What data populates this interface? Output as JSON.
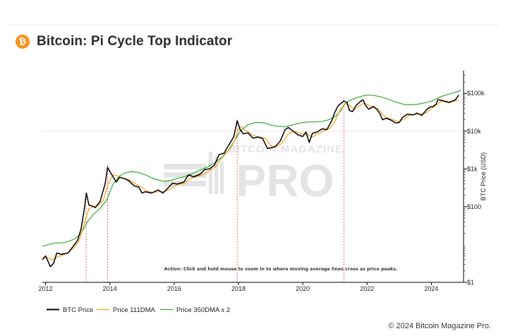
{
  "header": {
    "logo_glyph": "₿",
    "title": "Bitcoin: Pi Cycle Top Indicator"
  },
  "footer": {
    "copyright": "© 2024 Bitcoin Magazine Pro."
  },
  "watermark": {
    "brand": "BITCOIN MAGAZINE",
    "product": "PRO"
  },
  "colors": {
    "btc_price": "#000000",
    "dma111": "#f5a020",
    "dma350x2": "#3aa832",
    "signal_line": "#e05a5a",
    "grid": "#bdbdbd"
  },
  "chart_data": {
    "type": "line",
    "title": "Bitcoin: Pi Cycle Top Indicator",
    "xlabel": "",
    "ylabel": "BTC Price (USD)",
    "yscale": "log",
    "ylim": [
      1,
      400000
    ],
    "xlim": [
      2011.9,
      2025.0
    ],
    "x_ticks": [
      2012,
      2014,
      2016,
      2018,
      2020,
      2022,
      2024
    ],
    "y_ticks": [
      {
        "value": 1,
        "label": "$1"
      },
      {
        "value": 100,
        "label": "$100"
      },
      {
        "value": 1000,
        "label": "$1k"
      },
      {
        "value": 10000,
        "label": "$10k"
      },
      {
        "value": 100000,
        "label": "$100k"
      }
    ],
    "annotation": "Action: Click and hold mouse to zoom in to where moving average lines cross as price peaks.",
    "pi_cycle_signals": [
      2013.26,
      2013.93,
      2017.96,
      2021.28
    ],
    "series": [
      {
        "name": "BTC Price",
        "points": [
          [
            2011.9,
            4
          ],
          [
            2012.0,
            5
          ],
          [
            2012.15,
            2.6
          ],
          [
            2012.25,
            3.2
          ],
          [
            2012.35,
            6
          ],
          [
            2012.5,
            5.5
          ],
          [
            2012.7,
            6
          ],
          [
            2012.9,
            10
          ],
          [
            2013.0,
            13
          ],
          [
            2013.1,
            25
          ],
          [
            2013.2,
            80
          ],
          [
            2013.27,
            230
          ],
          [
            2013.35,
            110
          ],
          [
            2013.45,
            105
          ],
          [
            2013.55,
            95
          ],
          [
            2013.7,
            140
          ],
          [
            2013.85,
            400
          ],
          [
            2013.93,
            1100
          ],
          [
            2014.0,
            850
          ],
          [
            2014.1,
            620
          ],
          [
            2014.2,
            450
          ],
          [
            2014.3,
            600
          ],
          [
            2014.45,
            560
          ],
          [
            2014.6,
            480
          ],
          [
            2014.75,
            360
          ],
          [
            2014.9,
            330
          ],
          [
            2015.0,
            230
          ],
          [
            2015.1,
            250
          ],
          [
            2015.3,
            230
          ],
          [
            2015.5,
            280
          ],
          [
            2015.65,
            230
          ],
          [
            2015.8,
            310
          ],
          [
            2015.95,
            420
          ],
          [
            2016.1,
            400
          ],
          [
            2016.3,
            450
          ],
          [
            2016.45,
            700
          ],
          [
            2016.6,
            620
          ],
          [
            2016.8,
            720
          ],
          [
            2016.95,
            960
          ],
          [
            2017.1,
            1000
          ],
          [
            2017.25,
            1250
          ],
          [
            2017.4,
            2400
          ],
          [
            2017.55,
            2600
          ],
          [
            2017.7,
            4300
          ],
          [
            2017.85,
            7000
          ],
          [
            2017.96,
            19000
          ],
          [
            2018.05,
            11000
          ],
          [
            2018.15,
            8500
          ],
          [
            2018.3,
            9000
          ],
          [
            2018.45,
            6500
          ],
          [
            2018.6,
            7000
          ],
          [
            2018.75,
            6400
          ],
          [
            2018.9,
            3500
          ],
          [
            2019.0,
            3600
          ],
          [
            2019.15,
            3900
          ],
          [
            2019.3,
            5500
          ],
          [
            2019.45,
            11000
          ],
          [
            2019.55,
            12500
          ],
          [
            2019.7,
            10000
          ],
          [
            2019.85,
            8000
          ],
          [
            2020.0,
            7200
          ],
          [
            2020.1,
            9500
          ],
          [
            2020.2,
            5000
          ],
          [
            2020.3,
            8800
          ],
          [
            2020.45,
            9500
          ],
          [
            2020.6,
            11500
          ],
          [
            2020.75,
            11000
          ],
          [
            2020.9,
            19000
          ],
          [
            2021.0,
            32000
          ],
          [
            2021.1,
            47000
          ],
          [
            2021.28,
            63000
          ],
          [
            2021.38,
            57000
          ],
          [
            2021.45,
            35000
          ],
          [
            2021.55,
            33000
          ],
          [
            2021.65,
            47000
          ],
          [
            2021.8,
            62000
          ],
          [
            2021.88,
            67000
          ],
          [
            2021.95,
            48000
          ],
          [
            2022.05,
            38000
          ],
          [
            2022.2,
            45000
          ],
          [
            2022.3,
            38000
          ],
          [
            2022.4,
            29000
          ],
          [
            2022.48,
            20000
          ],
          [
            2022.6,
            22000
          ],
          [
            2022.75,
            19500
          ],
          [
            2022.88,
            16500
          ],
          [
            2023.0,
            17000
          ],
          [
            2023.1,
            23000
          ],
          [
            2023.25,
            28000
          ],
          [
            2023.45,
            27000
          ],
          [
            2023.55,
            30000
          ],
          [
            2023.7,
            26000
          ],
          [
            2023.85,
            37000
          ],
          [
            2023.95,
            43000
          ],
          [
            2024.05,
            45000
          ],
          [
            2024.15,
            52000
          ],
          [
            2024.2,
            68000
          ],
          [
            2024.3,
            66000
          ],
          [
            2024.45,
            60000
          ],
          [
            2024.55,
            57000
          ],
          [
            2024.65,
            62000
          ],
          [
            2024.75,
            68000
          ],
          [
            2024.85,
            90000
          ]
        ]
      },
      {
        "name": "Price 111DMA",
        "points": [
          [
            2011.9,
            4.5
          ],
          [
            2012.05,
            4.5
          ],
          [
            2012.2,
            4
          ],
          [
            2012.35,
            4.6
          ],
          [
            2012.5,
            5.2
          ],
          [
            2012.7,
            6
          ],
          [
            2012.9,
            8.5
          ],
          [
            2013.05,
            13
          ],
          [
            2013.2,
            35
          ],
          [
            2013.35,
            90
          ],
          [
            2013.5,
            100
          ],
          [
            2013.65,
            110
          ],
          [
            2013.8,
            150
          ],
          [
            2013.95,
            420
          ],
          [
            2014.1,
            700
          ],
          [
            2014.25,
            650
          ],
          [
            2014.4,
            560
          ],
          [
            2014.55,
            540
          ],
          [
            2014.7,
            460
          ],
          [
            2014.85,
            380
          ],
          [
            2015.0,
            320
          ],
          [
            2015.15,
            260
          ],
          [
            2015.3,
            240
          ],
          [
            2015.5,
            250
          ],
          [
            2015.7,
            250
          ],
          [
            2015.9,
            300
          ],
          [
            2016.1,
            390
          ],
          [
            2016.3,
            410
          ],
          [
            2016.5,
            550
          ],
          [
            2016.7,
            630
          ],
          [
            2016.9,
            700
          ],
          [
            2017.1,
            900
          ],
          [
            2017.3,
            1150
          ],
          [
            2017.45,
            1800
          ],
          [
            2017.6,
            2500
          ],
          [
            2017.75,
            3500
          ],
          [
            2017.9,
            6000
          ],
          [
            2017.98,
            11000
          ],
          [
            2018.1,
            13000
          ],
          [
            2018.25,
            10000
          ],
          [
            2018.45,
            7800
          ],
          [
            2018.65,
            7000
          ],
          [
            2018.85,
            6300
          ],
          [
            2019.0,
            4200
          ],
          [
            2019.15,
            3800
          ],
          [
            2019.35,
            4700
          ],
          [
            2019.55,
            8500
          ],
          [
            2019.75,
            10000
          ],
          [
            2019.95,
            8500
          ],
          [
            2020.15,
            8000
          ],
          [
            2020.3,
            7000
          ],
          [
            2020.5,
            8800
          ],
          [
            2020.7,
            10500
          ],
          [
            2020.85,
            12000
          ],
          [
            2021.0,
            18000
          ],
          [
            2021.15,
            35000
          ],
          [
            2021.3,
            53000
          ],
          [
            2021.45,
            48000
          ],
          [
            2021.6,
            38000
          ],
          [
            2021.75,
            46000
          ],
          [
            2021.9,
            55000
          ],
          [
            2022.05,
            48000
          ],
          [
            2022.2,
            42000
          ],
          [
            2022.35,
            38000
          ],
          [
            2022.5,
            27000
          ],
          [
            2022.65,
            22000
          ],
          [
            2022.85,
            19500
          ],
          [
            2023.0,
            18000
          ],
          [
            2023.15,
            21000
          ],
          [
            2023.3,
            26000
          ],
          [
            2023.5,
            28000
          ],
          [
            2023.7,
            28000
          ],
          [
            2023.85,
            31000
          ],
          [
            2024.0,
            40000
          ],
          [
            2024.15,
            48000
          ],
          [
            2024.3,
            62000
          ],
          [
            2024.5,
            63000
          ],
          [
            2024.7,
            61000
          ],
          [
            2024.85,
            68000
          ]
        ]
      },
      {
        "name": "Price 350DMA x 2",
        "points": [
          [
            2011.9,
            9
          ],
          [
            2012.1,
            10
          ],
          [
            2012.3,
            11
          ],
          [
            2012.5,
            11
          ],
          [
            2012.7,
            12
          ],
          [
            2012.9,
            14
          ],
          [
            2013.1,
            19
          ],
          [
            2013.3,
            40
          ],
          [
            2013.5,
            65
          ],
          [
            2013.7,
            90
          ],
          [
            2013.9,
            150
          ],
          [
            2014.1,
            400
          ],
          [
            2014.3,
            650
          ],
          [
            2014.5,
            800
          ],
          [
            2014.7,
            850
          ],
          [
            2014.9,
            800
          ],
          [
            2015.1,
            700
          ],
          [
            2015.3,
            580
          ],
          [
            2015.5,
            510
          ],
          [
            2015.7,
            470
          ],
          [
            2015.9,
            500
          ],
          [
            2016.1,
            560
          ],
          [
            2016.3,
            620
          ],
          [
            2016.5,
            720
          ],
          [
            2016.7,
            860
          ],
          [
            2016.9,
            1000
          ],
          [
            2017.1,
            1200
          ],
          [
            2017.3,
            1500
          ],
          [
            2017.5,
            2100
          ],
          [
            2017.7,
            3200
          ],
          [
            2017.9,
            6000
          ],
          [
            2018.05,
            10000
          ],
          [
            2018.3,
            15000
          ],
          [
            2018.55,
            17000
          ],
          [
            2018.8,
            16500
          ],
          [
            2019.0,
            14500
          ],
          [
            2019.2,
            13500
          ],
          [
            2019.4,
            13000
          ],
          [
            2019.6,
            14000
          ],
          [
            2019.8,
            15500
          ],
          [
            2020.0,
            17000
          ],
          [
            2020.2,
            17500
          ],
          [
            2020.4,
            17500
          ],
          [
            2020.6,
            18000
          ],
          [
            2020.8,
            20000
          ],
          [
            2021.0,
            24000
          ],
          [
            2021.2,
            36000
          ],
          [
            2021.28,
            50000
          ],
          [
            2021.45,
            65000
          ],
          [
            2021.65,
            75000
          ],
          [
            2021.85,
            85000
          ],
          [
            2022.0,
            90000
          ],
          [
            2022.2,
            88000
          ],
          [
            2022.4,
            82000
          ],
          [
            2022.6,
            73000
          ],
          [
            2022.8,
            63000
          ],
          [
            2023.0,
            55000
          ],
          [
            2023.2,
            50000
          ],
          [
            2023.4,
            50000
          ],
          [
            2023.6,
            52000
          ],
          [
            2023.8,
            56000
          ],
          [
            2024.0,
            62000
          ],
          [
            2024.2,
            75000
          ],
          [
            2024.4,
            88000
          ],
          [
            2024.6,
            98000
          ],
          [
            2024.8,
            110000
          ],
          [
            2024.92,
            120000
          ]
        ]
      }
    ]
  }
}
